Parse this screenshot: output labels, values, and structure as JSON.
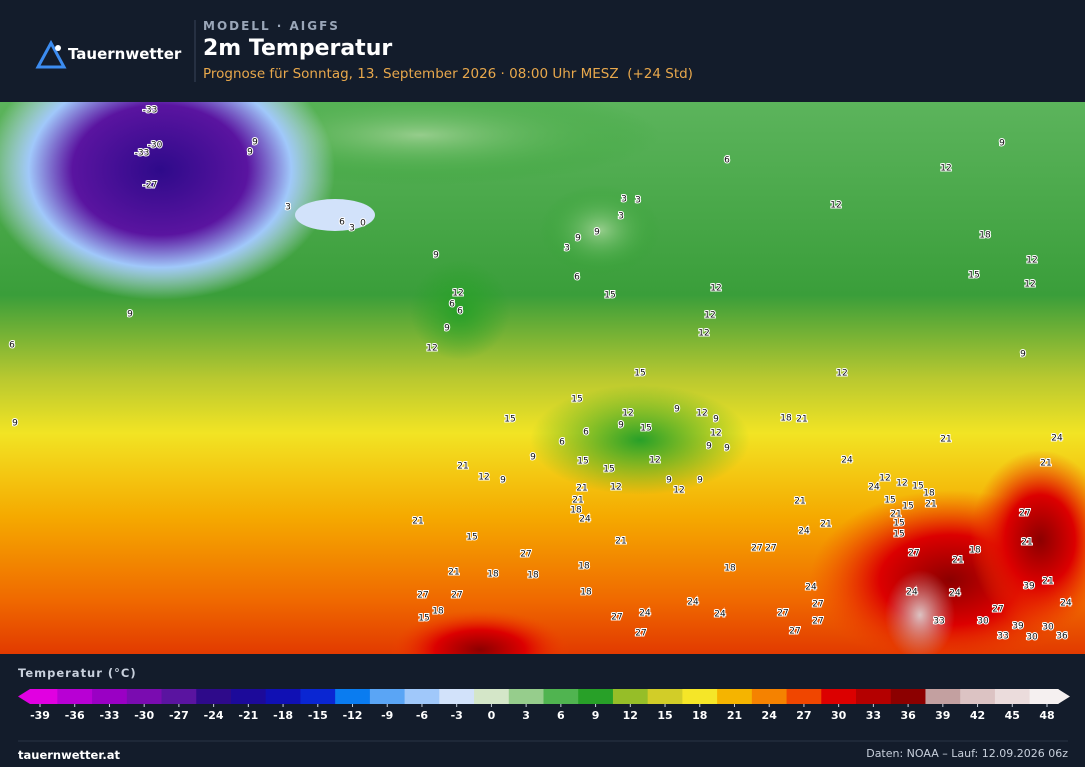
{
  "header": {
    "brand": "Tauernwetter",
    "kicker": "MODELL · AIGFS",
    "title": "2m Temperatur",
    "subtitle": "Prognose für Sonntag, 13. September 2026 · 08:00 Uhr MESZ  (+24 Std)"
  },
  "map": {
    "labels": [
      -33,
      -30,
      -33,
      9,
      9,
      -27,
      3,
      6,
      3,
      0,
      9,
      9,
      6,
      9,
      6,
      3,
      3,
      3,
      9,
      9,
      3,
      6,
      15,
      12,
      6,
      6,
      9,
      12,
      9,
      12,
      12,
      18,
      15,
      12,
      12,
      9,
      12,
      12,
      12,
      12,
      15,
      15,
      15,
      12,
      9,
      9,
      12,
      9,
      12,
      9,
      9,
      18,
      21,
      15,
      6,
      6,
      9,
      15,
      15,
      12,
      21,
      12,
      9,
      9,
      12,
      9,
      24,
      21,
      24,
      21,
      12,
      12,
      15,
      18,
      21,
      24,
      15,
      15,
      21,
      15,
      15,
      12,
      21,
      21,
      18,
      24,
      21,
      15,
      21,
      21,
      24,
      27,
      21,
      21,
      27,
      27,
      27,
      21,
      18,
      27,
      18,
      21,
      18,
      18,
      18,
      27,
      27,
      18,
      15,
      18,
      24,
      27,
      24,
      24,
      24,
      27,
      27,
      27,
      24,
      24,
      39,
      21,
      24,
      27,
      33,
      30,
      39,
      30,
      36,
      33,
      30,
      27,
      27,
      24,
      24
    ]
  },
  "legend": {
    "title": "Temperatur (°C)",
    "ticks": [
      -39,
      -36,
      -33,
      -30,
      -27,
      -24,
      -21,
      -18,
      -15,
      -12,
      -9,
      -6,
      -3,
      0,
      3,
      6,
      9,
      12,
      15,
      18,
      21,
      24,
      27,
      30,
      33,
      36,
      39,
      42,
      45,
      48
    ],
    "colors": [
      "#e100e1",
      "#b800d4",
      "#9a00c4",
      "#7a0cb0",
      "#5a14a0",
      "#2e0a8a",
      "#1c0a9a",
      "#1010b4",
      "#0a26d2",
      "#0a7cf0",
      "#5aa5f5",
      "#a0c8fa",
      "#d2e2fa",
      "#d4e6c8",
      "#96cd8c",
      "#50b450",
      "#28a028",
      "#96be28",
      "#d2cd28",
      "#f5e628",
      "#f5b400",
      "#f58200",
      "#f04600",
      "#dc0000",
      "#b40000",
      "#8c0000",
      "#c3a0a0",
      "#dcc3c3",
      "#ebdcdc",
      "#f5f0f0"
    ]
  },
  "footer": {
    "site": "tauernwetter.at",
    "source": "Daten: NOAA – Lauf: 12.09.2026 06z"
  }
}
